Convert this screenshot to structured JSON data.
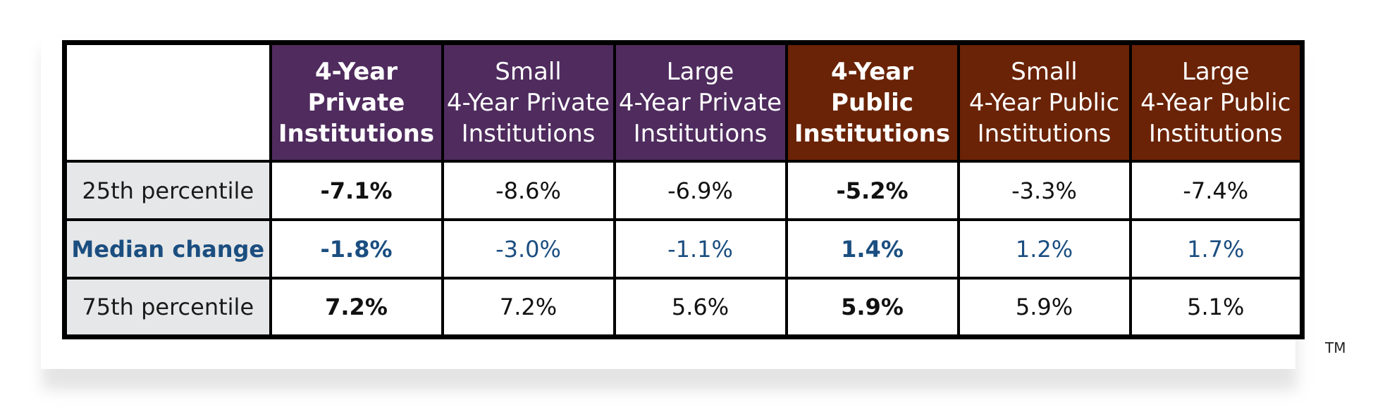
{
  "chart_data": {
    "type": "table",
    "columns": [
      {
        "lines": [
          "4-Year",
          "Private",
          "Institutions"
        ],
        "group": "private",
        "emphasis": true
      },
      {
        "lines": [
          "Small",
          "4-Year Private",
          "Institutions"
        ],
        "group": "private",
        "emphasis": false
      },
      {
        "lines": [
          "Large",
          "4-Year Private",
          "Institutions"
        ],
        "group": "private",
        "emphasis": false
      },
      {
        "lines": [
          "4-Year",
          "Public",
          "Institutions"
        ],
        "group": "public",
        "emphasis": true
      },
      {
        "lines": [
          "Small",
          "4-Year Public",
          "Institutions"
        ],
        "group": "public",
        "emphasis": false
      },
      {
        "lines": [
          "Large",
          "4-Year Public",
          "Institutions"
        ],
        "group": "public",
        "emphasis": false
      }
    ],
    "rows": [
      {
        "label": "25th percentile",
        "values": [
          "-7.1%",
          "-8.6%",
          "-6.9%",
          "-5.2%",
          "-3.3%",
          "-7.4%"
        ]
      },
      {
        "label": "Median change",
        "values": [
          "-1.8%",
          "-3.0%",
          "-1.1%",
          "1.4%",
          "1.2%",
          "1.7%"
        ]
      },
      {
        "label": "75th percentile",
        "values": [
          "7.2%",
          "7.2%",
          "5.6%",
          "5.9%",
          "5.9%",
          "5.1%"
        ]
      }
    ]
  },
  "colors": {
    "private_header": "#4f2b5e",
    "public_header": "#6a2306",
    "median_text": "#1b4e80",
    "label_background": "#e6e7e8"
  },
  "trademark": "TM"
}
